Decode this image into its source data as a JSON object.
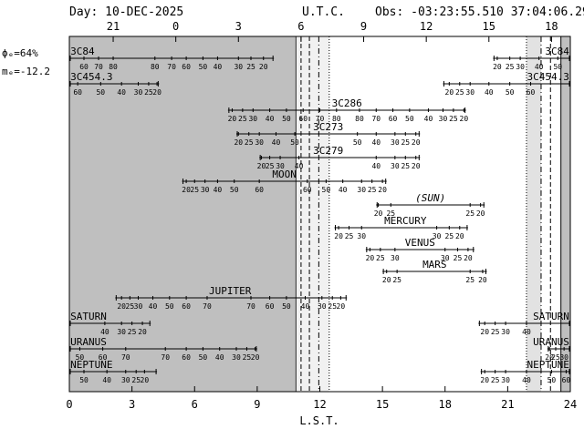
{
  "header": {
    "day": "Day: 10-DEC-2025",
    "utc_label": "U.T.C.",
    "obs": "Obs: -03:23:55.510 37:04:06.290"
  },
  "moon_info": {
    "phase": "ϕₑ=64%",
    "mag": "mₑ=-12.2"
  },
  "chart_data": {
    "type": "timeline",
    "xlabel": "L.S.T.",
    "xlim": [
      0,
      24
    ],
    "lst_ticks": [
      0,
      3,
      6,
      9,
      12,
      15,
      18,
      21,
      24
    ],
    "utc_ticks": [
      {
        "label": "21",
        "lst": 2.1
      },
      {
        "label": "0",
        "lst": 5.1
      },
      {
        "label": "3",
        "lst": 8.1
      },
      {
        "label": "6",
        "lst": 11.1
      },
      {
        "label": "9",
        "lst": 14.1
      },
      {
        "label": "12",
        "lst": 17.1
      },
      {
        "label": "15",
        "lst": 20.1
      },
      {
        "label": "18",
        "lst": 23.1
      }
    ],
    "night_shading": [
      {
        "from": 0,
        "to": 10.8,
        "tone": "dark"
      },
      {
        "from": 10.8,
        "to": 12.45,
        "tone": "dotted"
      },
      {
        "from": 21.9,
        "to": 22.6,
        "tone": "light"
      },
      {
        "from": 23.55,
        "to": 24,
        "tone": "dark"
      }
    ],
    "vlines": [
      {
        "lst": 10.85,
        "style": "solid"
      },
      {
        "lst": 11.1,
        "style": "dash"
      },
      {
        "lst": 11.5,
        "style": "dash"
      },
      {
        "lst": 11.95,
        "style": "dashdot"
      },
      {
        "lst": 12.45,
        "style": "dot"
      },
      {
        "lst": 21.9,
        "style": "dot"
      },
      {
        "lst": 22.6,
        "style": "dashdot"
      },
      {
        "lst": 23.05,
        "style": "dash"
      },
      {
        "lst": 23.55,
        "style": "solid"
      }
    ],
    "objects": [
      {
        "name": "3C84",
        "segments": [
          [
            0,
            9.8
          ],
          [
            20.3,
            24
          ]
        ],
        "name_pos": [
          [
            0.05,
            "start"
          ],
          [
            23.95,
            "end"
          ]
        ],
        "elev": [
          [
            "60",
            0.7
          ],
          [
            "70",
            1.4
          ],
          [
            "80",
            2.1
          ],
          [
            "80",
            4.1
          ],
          [
            "70",
            4.9
          ],
          [
            "60",
            5.6
          ],
          [
            "50",
            6.4
          ],
          [
            "40",
            7.1
          ],
          [
            "30",
            8.1
          ],
          [
            "25",
            8.7
          ],
          [
            "20",
            9.3
          ],
          [
            "20",
            20.5
          ],
          [
            "25",
            21.1
          ],
          [
            "30",
            21.6
          ],
          [
            "40",
            22.5
          ],
          [
            "50",
            23.4
          ]
        ]
      },
      {
        "name": "3C454.3",
        "segments": [
          [
            0,
            4.3
          ],
          [
            17.9,
            24
          ]
        ],
        "name_pos": [
          [
            0.05,
            "start"
          ],
          [
            23.95,
            "end"
          ]
        ],
        "elev": [
          [
            "60",
            0.4
          ],
          [
            "50",
            1.5
          ],
          [
            "40",
            2.5
          ],
          [
            "30",
            3.3
          ],
          [
            "25",
            3.8
          ],
          [
            "20",
            4.2
          ],
          [
            "20",
            18.2
          ],
          [
            "25",
            18.7
          ],
          [
            "30",
            19.2
          ],
          [
            "40",
            20.1
          ],
          [
            "50",
            21.1
          ],
          [
            "60",
            22.1
          ]
        ]
      },
      {
        "name": "3C286",
        "segments": [
          [
            7.6,
            19.0
          ]
        ],
        "name_pos": [
          [
            13.3,
            "middle"
          ]
        ],
        "elev": [
          [
            "20",
            7.8
          ],
          [
            "25",
            8.3
          ],
          [
            "30",
            8.8
          ],
          [
            "40",
            9.6
          ],
          [
            "50",
            10.4
          ],
          [
            "60",
            11.2
          ],
          [
            "70",
            12.0
          ],
          [
            "80",
            12.8
          ],
          [
            "80",
            13.9
          ],
          [
            "70",
            14.7
          ],
          [
            "60",
            15.5
          ],
          [
            "50",
            16.3
          ],
          [
            "40",
            17.2
          ],
          [
            "30",
            17.9
          ],
          [
            "25",
            18.4
          ],
          [
            "20",
            18.9
          ]
        ]
      },
      {
        "name": "3C273",
        "segments": [
          [
            8.0,
            16.8
          ]
        ],
        "name_pos": [
          [
            12.4,
            "middle"
          ]
        ],
        "elev": [
          [
            "20",
            8.1
          ],
          [
            "25",
            8.6
          ],
          [
            "30",
            9.1
          ],
          [
            "40",
            9.9
          ],
          [
            "50",
            10.8
          ],
          [
            "50",
            13.8
          ],
          [
            "40",
            14.7
          ],
          [
            "30",
            15.6
          ],
          [
            "25",
            16.1
          ],
          [
            "20",
            16.6
          ]
        ]
      },
      {
        "name": "3C279",
        "segments": [
          [
            9.1,
            16.8
          ]
        ],
        "name_pos": [
          [
            12.4,
            "middle"
          ]
        ],
        "elev": [
          [
            "20",
            9.2
          ],
          [
            "25",
            9.6
          ],
          [
            "30",
            10.1
          ],
          [
            "40",
            11.0
          ],
          [
            "40",
            14.7
          ],
          [
            "30",
            15.6
          ],
          [
            "25",
            16.1
          ],
          [
            "20",
            16.6
          ]
        ]
      },
      {
        "name": "MOON",
        "segments": [
          [
            5.4,
            15.2
          ]
        ],
        "name_pos": [
          [
            10.3,
            "middle"
          ]
        ],
        "elev": [
          [
            "20",
            5.6
          ],
          [
            "25",
            6.0
          ],
          [
            "30",
            6.5
          ],
          [
            "40",
            7.1
          ],
          [
            "50",
            7.9
          ],
          [
            "60",
            9.1
          ],
          [
            "60",
            11.4
          ],
          [
            "50",
            12.3
          ],
          [
            "40",
            13.1
          ],
          [
            "30",
            14.0
          ],
          [
            "25",
            14.5
          ],
          [
            "20",
            15.0
          ]
        ]
      },
      {
        "name": "(SUN)",
        "italic": true,
        "segments": [
          [
            14.7,
            19.9
          ]
        ],
        "name_pos": [
          [
            17.3,
            "middle"
          ]
        ],
        "elev": [
          [
            "20",
            14.8
          ],
          [
            "25",
            15.4
          ],
          [
            "25",
            19.2
          ],
          [
            "20",
            19.7
          ]
        ]
      },
      {
        "name": "MERCURY",
        "segments": [
          [
            12.7,
            19.1
          ]
        ],
        "name_pos": [
          [
            16.1,
            "middle"
          ]
        ],
        "elev": [
          [
            "20",
            12.9
          ],
          [
            "25",
            13.4
          ],
          [
            "30",
            14.0
          ],
          [
            "30",
            17.6
          ],
          [
            "25",
            18.2
          ],
          [
            "20",
            18.7
          ]
        ]
      },
      {
        "name": "VENUS",
        "segments": [
          [
            14.2,
            19.4
          ]
        ],
        "name_pos": [
          [
            16.8,
            "middle"
          ]
        ],
        "elev": [
          [
            "20",
            14.4
          ],
          [
            "25",
            14.9
          ],
          [
            "30",
            15.6
          ],
          [
            "30",
            18.0
          ],
          [
            "25",
            18.6
          ],
          [
            "20",
            19.1
          ]
        ]
      },
      {
        "name": "MARS",
        "segments": [
          [
            15.0,
            20.0
          ]
        ],
        "name_pos": [
          [
            17.5,
            "middle"
          ]
        ],
        "elev": [
          [
            "20",
            15.2
          ],
          [
            "25",
            15.7
          ],
          [
            "25",
            19.2
          ],
          [
            "20",
            19.8
          ]
        ]
      },
      {
        "name": "JUPITER",
        "segments": [
          [
            2.2,
            13.3
          ]
        ],
        "name_pos": [
          [
            7.7,
            "middle"
          ]
        ],
        "elev": [
          [
            "20",
            2.5
          ],
          [
            "25",
            2.9
          ],
          [
            "30",
            3.3
          ],
          [
            "40",
            4.0
          ],
          [
            "50",
            4.8
          ],
          [
            "60",
            5.6
          ],
          [
            "70",
            6.6
          ],
          [
            "70",
            8.7
          ],
          [
            "60",
            9.6
          ],
          [
            "50",
            10.4
          ],
          [
            "40",
            11.3
          ],
          [
            "30",
            12.1
          ],
          [
            "25",
            12.6
          ],
          [
            "20",
            13.0
          ]
        ]
      },
      {
        "name": "SATURN",
        "segments": [
          [
            0,
            3.9
          ],
          [
            19.6,
            24
          ]
        ],
        "name_pos": [
          [
            0.05,
            "start"
          ],
          [
            23.95,
            "end"
          ]
        ],
        "elev": [
          [
            "40",
            1.7
          ],
          [
            "30",
            2.5
          ],
          [
            "25",
            3.0
          ],
          [
            "20",
            3.5
          ],
          [
            "20",
            19.9
          ],
          [
            "25",
            20.4
          ],
          [
            "30",
            20.9
          ],
          [
            "40",
            21.9
          ]
        ]
      },
      {
        "name": "URANUS",
        "segments": [
          [
            0,
            9.0
          ],
          [
            22.9,
            24
          ]
        ],
        "name_pos": [
          [
            0.05,
            "start"
          ],
          [
            23.95,
            "end"
          ]
        ],
        "elev": [
          [
            "50",
            0.5
          ],
          [
            "60",
            1.6
          ],
          [
            "70",
            2.7
          ],
          [
            "70",
            4.6
          ],
          [
            "60",
            5.6
          ],
          [
            "50",
            6.4
          ],
          [
            "40",
            7.2
          ],
          [
            "30",
            8.0
          ],
          [
            "25",
            8.5
          ],
          [
            "20",
            8.9
          ],
          [
            "20",
            23.0
          ],
          [
            "25",
            23.3
          ],
          [
            "30",
            23.7
          ]
        ]
      },
      {
        "name": "NEPTUNE",
        "segments": [
          [
            0,
            4.2
          ],
          [
            19.7,
            24
          ]
        ],
        "name_pos": [
          [
            0.05,
            "start"
          ],
          [
            23.95,
            "end"
          ]
        ],
        "elev": [
          [
            "50",
            0.7
          ],
          [
            "40",
            1.8
          ],
          [
            "30",
            2.7
          ],
          [
            "25",
            3.2
          ],
          [
            "20",
            3.6
          ],
          [
            "20",
            19.9
          ],
          [
            "25",
            20.4
          ],
          [
            "30",
            20.9
          ],
          [
            "40",
            21.9
          ],
          [
            "50",
            23.1
          ],
          [
            "60",
            23.8
          ]
        ]
      }
    ]
  }
}
